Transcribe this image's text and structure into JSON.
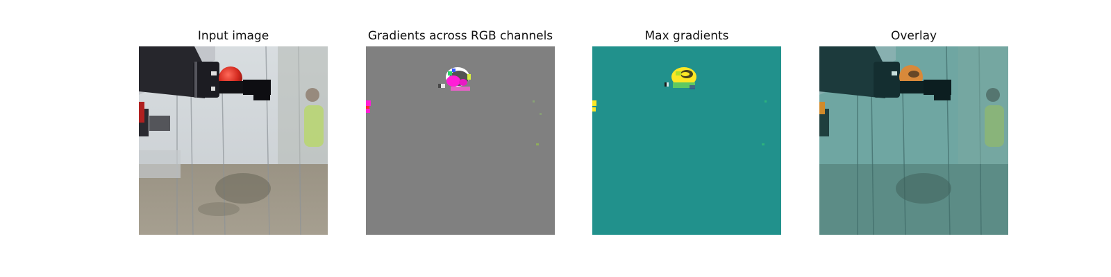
{
  "figure": {
    "panels": [
      {
        "id": "input",
        "title": "Input image"
      },
      {
        "id": "gradients",
        "title": "Gradients across RGB channels"
      },
      {
        "id": "max",
        "title": "Max gradients"
      },
      {
        "id": "overlay",
        "title": "Overlay"
      }
    ],
    "colors": {
      "background": "#ffffff",
      "gradient_gray": "#808080",
      "viridis_teal": "#21918c",
      "viridis_yellow": "#fde725",
      "overlay_tint": "#4a9a94",
      "ball_red": "#c0201c",
      "magenta": "#ff1ed6"
    }
  }
}
